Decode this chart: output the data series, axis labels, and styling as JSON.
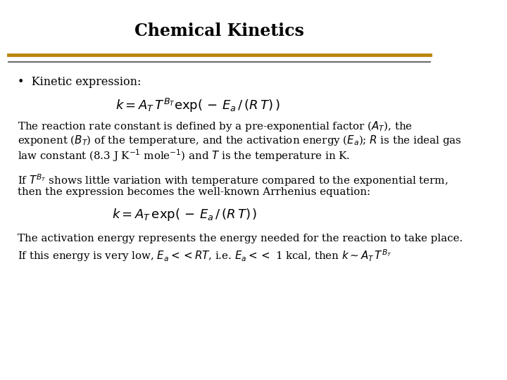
{
  "title": "Chemical Kinetics",
  "bg_color": "#ffffff",
  "title_color": "#000000",
  "line1_color": "#B8860B",
  "line2_color": "#4a4a4a",
  "bullet_text": "Kinetic expression:",
  "eq1": "$k = A_T\\, T^{B_T}\\mathrm{exp(\\, -\\, }E_a\\mathrm{\\, /\\, (}R\\,T\\mathrm{)\\, )}$",
  "para1_line1": "The reaction rate constant is defined by a pre-exponential factor ($A_T$), the",
  "para1_line2": "exponent ($B_T$) of the temperature, and the activation energy ($E_a$); $R$ is the ideal gas",
  "para1_line3": "law constant (8.3 J K$^{-1}$ mole$^{-1}$) and $T$ is the temperature in K.",
  "para2_line1": "If $T^{B_T}$ shows little variation with temperature compared to the exponential term,",
  "para2_line2": "then the expression becomes the well-known Arrhenius equation:",
  "eq2": "$k = A_T\\,\\mathrm{exp(\\, -\\, }E_a\\mathrm{\\, /\\, (}R\\,T\\mathrm{)\\, )}$",
  "para3_line1": "The activation energy represents the energy needed for the reaction to take place.",
  "para3_line2": "If this energy is very low, $E_a << RT$, i.e. $E_a <<$ 1 kcal, then $k \\sim A_T\\,T^{B_T}$"
}
